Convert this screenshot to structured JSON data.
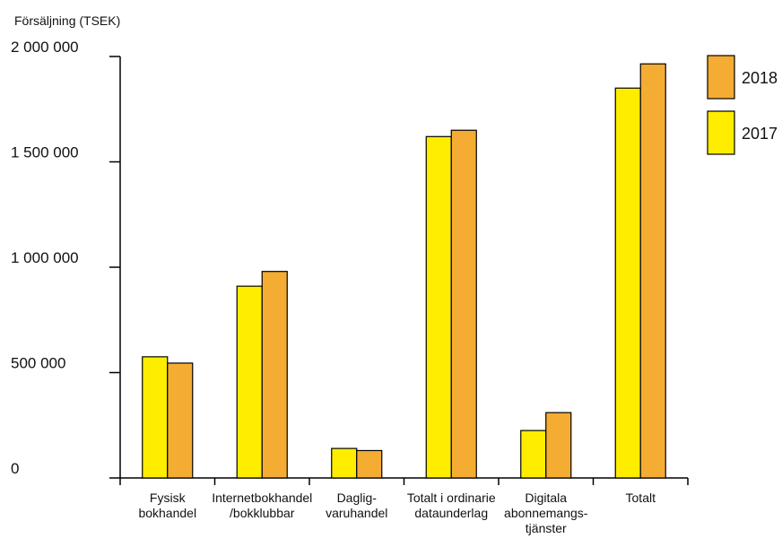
{
  "chart_data": {
    "type": "bar",
    "title": "",
    "ylabel": "Försäljning (TSEK)",
    "xlabel": "",
    "ylim": [
      0,
      2000000
    ],
    "yticks": [
      {
        "value": 0,
        "label": "0"
      },
      {
        "value": 500000,
        "label": "500 000"
      },
      {
        "value": 1000000,
        "label": "1 000 000"
      },
      {
        "value": 1500000,
        "label": "1 500 000"
      },
      {
        "value": 2000000,
        "label": "2 000 000"
      }
    ],
    "categories": [
      {
        "lines": [
          "Fysisk",
          "bokhandel"
        ]
      },
      {
        "lines": [
          "Internetbokhandel",
          "/bokklubbar"
        ]
      },
      {
        "lines": [
          "Daglig-",
          "varuhandel"
        ]
      },
      {
        "lines": [
          "Totalt i ordinarie",
          "dataunderlag"
        ]
      },
      {
        "lines": [
          "Digitala",
          "abonnemangs-",
          "tjänster"
        ]
      },
      {
        "lines": [
          "Totalt"
        ]
      }
    ],
    "series": [
      {
        "name": "2017",
        "color": "#FFED00",
        "values": [
          575000,
          910000,
          140000,
          1620000,
          225000,
          1850000
        ]
      },
      {
        "name": "2018",
        "color": "#F5AC32",
        "values": [
          545000,
          980000,
          130000,
          1650000,
          310000,
          1965000
        ]
      }
    ],
    "legend": {
      "placement": "top-right",
      "order": [
        "2018",
        "2017"
      ]
    },
    "grid": false
  }
}
